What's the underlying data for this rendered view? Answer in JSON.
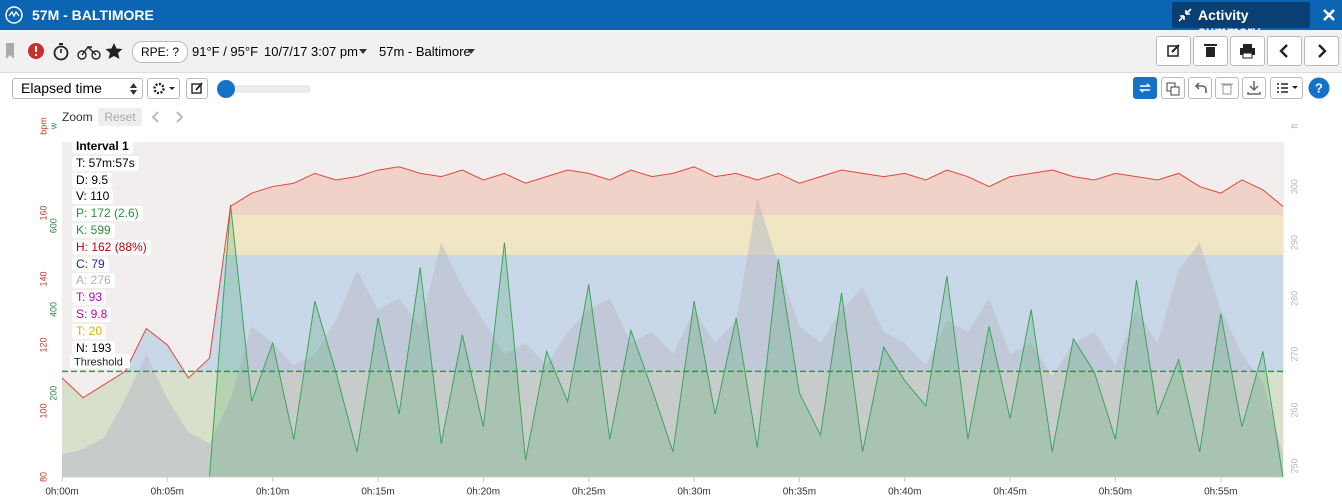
{
  "header": {
    "title": "57M - BALTIMORE",
    "summary_button": "Activity summary"
  },
  "toolbar": {
    "rpe": "RPE: ?",
    "temperature": "91°F / 95°F",
    "date": "10/7/17 3:07 pm",
    "workout": "57m - Baltimore"
  },
  "controls": {
    "x_mode": "Elapsed time",
    "zoom": "Zoom",
    "reset": "Reset"
  },
  "chart_data": {
    "type": "line",
    "x": [
      0,
      1,
      2,
      3,
      4,
      5,
      6,
      7,
      8,
      9,
      10,
      11,
      12,
      13,
      14,
      15,
      16,
      17,
      18,
      19,
      20,
      21,
      22,
      23,
      24,
      25,
      26,
      27,
      28,
      29,
      30,
      31,
      32,
      33,
      34,
      35,
      36,
      37,
      38,
      39,
      40,
      41,
      42,
      43,
      44,
      45,
      46,
      47,
      48,
      49,
      50,
      51,
      52,
      53,
      54,
      55,
      56,
      57,
      57.95
    ],
    "xlim": [
      0,
      58
    ],
    "xticks": [
      {
        "value": 0,
        "label": "0h:00m"
      },
      {
        "value": 5,
        "label": "0h:05m"
      },
      {
        "value": 10,
        "label": "0h:10m"
      },
      {
        "value": 15,
        "label": "0h:15m"
      },
      {
        "value": 20,
        "label": "0h:20m"
      },
      {
        "value": 25,
        "label": "0h:25m"
      },
      {
        "value": 30,
        "label": "0h:30m"
      },
      {
        "value": 35,
        "label": "0h:35m"
      },
      {
        "value": 40,
        "label": "0h:40m"
      },
      {
        "value": 45,
        "label": "0h:45m"
      },
      {
        "value": 50,
        "label": "0h:50m"
      },
      {
        "value": 55,
        "label": "0h:55m"
      }
    ],
    "axes": {
      "hr": {
        "label": "bpm",
        "color": "#c0392b",
        "lim": [
          80,
          181.5
        ],
        "ticks": [
          80,
          100,
          120,
          140,
          160
        ]
      },
      "power": {
        "label": "w",
        "color": "#2e8b3e",
        "lim": [
          0,
          800
        ],
        "ticks": [
          200,
          400,
          600
        ]
      },
      "elevation": {
        "label": "ft",
        "color": "#b5b5b5",
        "lim": [
          248,
          308
        ],
        "ticks": [
          250,
          260,
          270,
          280,
          290,
          300
        ]
      }
    },
    "series": [
      {
        "name": "Elevation",
        "axis": "elevation",
        "color": "#b9bcc8",
        "values": [
          252,
          253,
          255,
          262,
          270,
          262,
          256,
          254,
          262,
          275,
          272,
          268,
          270,
          276,
          285,
          278,
          280,
          275,
          290,
          282,
          276,
          270,
          272,
          268,
          274,
          278,
          280,
          272,
          274,
          270,
          278,
          272,
          276,
          298,
          286,
          275,
          272,
          278,
          282,
          274,
          272,
          268,
          276,
          274,
          280,
          270,
          272,
          266,
          272,
          274,
          268,
          278,
          272,
          285,
          290,
          278,
          270,
          265,
          252
        ]
      },
      {
        "name": "Power",
        "axis": "power",
        "color": "#3da35a",
        "values": [
          0,
          0,
          0,
          0,
          0,
          0,
          0,
          0,
          650,
          180,
          320,
          90,
          420,
          250,
          60,
          380,
          150,
          500,
          80,
          340,
          120,
          560,
          40,
          300,
          180,
          460,
          90,
          350,
          210,
          60,
          420,
          150,
          380,
          70,
          520,
          200,
          100,
          440,
          60,
          310,
          230,
          170,
          480,
          90,
          360,
          140,
          400,
          60,
          330,
          250,
          90,
          470,
          150,
          280,
          60,
          390,
          120,
          300,
          0
        ]
      },
      {
        "name": "Heart rate",
        "axis": "hr",
        "color": "#e0463c",
        "values": [
          110,
          104,
          108,
          112,
          125,
          120,
          110,
          116,
          162,
          166,
          168,
          169,
          172,
          170,
          171,
          173,
          174,
          172,
          171,
          173,
          170,
          172,
          169,
          171,
          173,
          172,
          170,
          173,
          171,
          172,
          174,
          171,
          172,
          170,
          172,
          169,
          171,
          173,
          172,
          171,
          172,
          170,
          173,
          171,
          168,
          171,
          172,
          173,
          171,
          170,
          172,
          171,
          170,
          172,
          168,
          166,
          170,
          167,
          162
        ]
      }
    ],
    "threshold": {
      "label": "Threshold",
      "value": 112
    },
    "interval": [
      {
        "text": "Interval 1",
        "color": "#000000"
      },
      {
        "text": "T: 57m:57s",
        "color": "#000000"
      },
      {
        "text": "D: 9.5",
        "color": "#000000"
      },
      {
        "text": "V: 110",
        "color": "#000000"
      },
      {
        "text": "P: 172 (2.6)",
        "color": "#2e8b3e"
      },
      {
        "text": "K: 599",
        "color": "#2e8b3e"
      },
      {
        "text": "H: 162 (88%)",
        "color": "#c0000a"
      },
      {
        "text": "C: 79",
        "color": "#1a2aa0"
      },
      {
        "text": "A: 276",
        "color": "#b0b0b0"
      },
      {
        "text": "T: 93",
        "color": "#c000c0"
      },
      {
        "text": "S: 9.8",
        "color": "#c000c0"
      },
      {
        "text": "T: 20",
        "color": "#e0b000"
      },
      {
        "text": "N: 193",
        "color": "#000000"
      }
    ]
  }
}
